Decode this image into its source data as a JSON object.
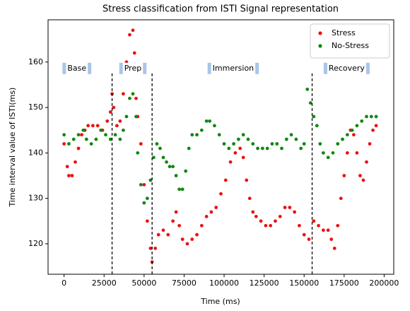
{
  "chart_data": {
    "type": "scatter",
    "title": "Stress classification from ISTI Signal representation",
    "x_label": "Time (ms)",
    "y_label": "Time interval value of ISTI(ms)",
    "xlim": [
      -10000,
      206000
    ],
    "ylim": [
      113.3,
      169.3
    ],
    "xticks": [
      0,
      25000,
      50000,
      75000,
      100000,
      125000,
      150000,
      175000,
      200000
    ],
    "yticks": [
      120,
      130,
      140,
      150,
      160
    ],
    "legend": "upper right",
    "vlines": [
      30000,
      55000,
      155000
    ],
    "annotations": [
      {
        "text": "Base",
        "x": 8000,
        "y": 158.6
      },
      {
        "text": "Prep",
        "x": 43000,
        "y": 158.6
      },
      {
        "text": "Immersion",
        "x": 105700,
        "y": 158.6
      },
      {
        "text": "Recovery",
        "x": 176600,
        "y": 158.6
      }
    ],
    "series": [
      {
        "name": "Stress",
        "color": "#ee1111",
        "x": [
          0,
          2000,
          3000,
          5000,
          7000,
          9000,
          11000,
          13000,
          15000,
          18000,
          21000,
          24000,
          27000,
          29000,
          30000,
          31000,
          33000,
          35000,
          37000,
          39000,
          41000,
          43000,
          44000,
          45000,
          46000,
          48000,
          50000,
          52000,
          54000,
          55000,
          57000,
          59000,
          62000,
          65000,
          68000,
          70000,
          72000,
          74000,
          77000,
          80000,
          83000,
          86000,
          89000,
          92000,
          95000,
          98000,
          101000,
          104000,
          107000,
          110000,
          112000,
          114000,
          116000,
          118000,
          120000,
          123000,
          126000,
          129000,
          132000,
          135000,
          138000,
          141000,
          144000,
          147000,
          150000,
          153000,
          156000,
          159000,
          162000,
          165000,
          167000,
          169000,
          171000,
          173000,
          175000,
          177000,
          179000,
          181000,
          183000,
          185000,
          187000,
          189000,
          191000,
          193000,
          195000
        ],
        "values": [
          142,
          137,
          135,
          135,
          138,
          141,
          144,
          145,
          146,
          146,
          146,
          145,
          147,
          149,
          153,
          150,
          146,
          147,
          153,
          160,
          166,
          167,
          162,
          152,
          148,
          142,
          133,
          125,
          119,
          116,
          119,
          122,
          123,
          122,
          125,
          127,
          124,
          121,
          120,
          121,
          122,
          124,
          126,
          127,
          128,
          131,
          134,
          138,
          140,
          141,
          139,
          134,
          130,
          127,
          126,
          125,
          124,
          124,
          125,
          126,
          128,
          128,
          127,
          124,
          122,
          121,
          125,
          124,
          123,
          123,
          121,
          119,
          124,
          130,
          135,
          140,
          145,
          144,
          140,
          135,
          134,
          138,
          142,
          145,
          146
        ]
      },
      {
        "name": "No-Stress",
        "color": "#118811",
        "x": [
          0,
          3000,
          6000,
          9000,
          12000,
          14000,
          17000,
          20000,
          23000,
          26000,
          29000,
          32000,
          35000,
          37000,
          39000,
          41000,
          43000,
          45000,
          46000,
          48000,
          50000,
          52000,
          54000,
          56000,
          58000,
          60000,
          62000,
          64000,
          66000,
          68000,
          70000,
          72000,
          74000,
          76000,
          78000,
          80000,
          83000,
          86000,
          89000,
          91000,
          94000,
          97000,
          100000,
          103000,
          106000,
          109000,
          112000,
          115000,
          118000,
          121000,
          124000,
          127000,
          130000,
          133000,
          136000,
          139000,
          142000,
          145000,
          148000,
          150000,
          152000,
          154000,
          156000,
          158000,
          160000,
          162000,
          165000,
          168000,
          171000,
          174000,
          177000,
          180000,
          183000,
          186000,
          189000,
          192000,
          195000
        ],
        "values": [
          144,
          142,
          143,
          144,
          145,
          143,
          142,
          143,
          145,
          144,
          143,
          144,
          143,
          145,
          148,
          152,
          153,
          148,
          140,
          133,
          129,
          130,
          134,
          139,
          142,
          141,
          139,
          138,
          137,
          137,
          135,
          132,
          132,
          136,
          141,
          144,
          144,
          145,
          147,
          147,
          146,
          144,
          142,
          141,
          142,
          143,
          144,
          143,
          142,
          141,
          141,
          141,
          142,
          142,
          141,
          143,
          144,
          143,
          141,
          142,
          154,
          151,
          148,
          146,
          142,
          140,
          139,
          140,
          142,
          143,
          144,
          145,
          146,
          147,
          148,
          148,
          148
        ]
      }
    ]
  }
}
